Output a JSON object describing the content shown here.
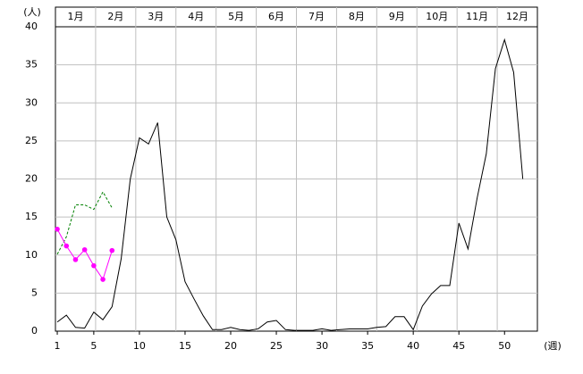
{
  "chart_data": {
    "type": "line",
    "y_label": "(人)",
    "x_label": "(週)",
    "months": [
      "1月",
      "2月",
      "3月",
      "4月",
      "5月",
      "6月",
      "7月",
      "8月",
      "9月",
      "10月",
      "11月",
      "12月"
    ],
    "x": [
      1,
      2,
      3,
      4,
      5,
      6,
      7,
      8,
      9,
      10,
      11,
      12,
      13,
      14,
      15,
      16,
      17,
      18,
      19,
      20,
      21,
      22,
      23,
      24,
      25,
      26,
      27,
      28,
      29,
      30,
      31,
      32,
      33,
      34,
      35,
      36,
      37,
      38,
      39,
      40,
      41,
      42,
      43,
      44,
      45,
      46,
      47,
      48,
      49,
      50,
      51,
      52
    ],
    "series": [
      {
        "color": "#000000",
        "dash": false,
        "markers": false,
        "values": [
          1.2,
          2.1,
          0.5,
          0.4,
          2.5,
          1.5,
          3.2,
          9.5,
          20,
          25.4,
          24.6,
          27.4,
          15,
          12,
          6.5,
          4.2,
          2,
          0.2,
          0.2,
          0.5,
          0.2,
          0.1,
          0.3,
          1.2,
          1.4,
          0.2,
          0.1,
          0.1,
          0.1,
          0.3,
          0.1,
          0.2,
          0.3,
          0.3,
          0.3,
          0.5,
          0.6,
          1.9,
          1.9,
          0.2,
          3.3,
          4.9,
          6,
          6,
          14.2,
          10.8,
          17.5,
          23.3,
          34.5,
          38.3,
          34,
          20
        ]
      },
      {
        "color": "#008000",
        "dash": true,
        "markers": false,
        "values": [
          10.1,
          12.4,
          16.6,
          16.6,
          16,
          18.3,
          16.2,
          null,
          null,
          null,
          null,
          null,
          null,
          null,
          null,
          null,
          null,
          null,
          null,
          null,
          null,
          null,
          null,
          null,
          null,
          null,
          null,
          null,
          null,
          null,
          null,
          null,
          null,
          null,
          null,
          null,
          null,
          null,
          null,
          null,
          null,
          null,
          null,
          null,
          null,
          null,
          null,
          null,
          null,
          null,
          null,
          null
        ]
      },
      {
        "color": "#ff00ff",
        "dash": false,
        "markers": true,
        "values": [
          13.4,
          11.2,
          9.4,
          10.7,
          8.6,
          6.8,
          10.6,
          null,
          null,
          null,
          null,
          null,
          null,
          null,
          null,
          null,
          null,
          null,
          null,
          null,
          null,
          null,
          null,
          null,
          null,
          null,
          null,
          null,
          null,
          null,
          null,
          null,
          null,
          null,
          null,
          null,
          null,
          null,
          null,
          null,
          null,
          null,
          null,
          null,
          null,
          null,
          null,
          null,
          null,
          null,
          null,
          null
        ]
      }
    ],
    "xlim": [
      0.8,
      53.6
    ],
    "xticks": [
      1,
      5,
      10,
      15,
      20,
      25,
      30,
      35,
      40,
      45,
      50
    ],
    "ylim": [
      0,
      40
    ],
    "yticks": [
      0,
      5,
      10,
      15,
      20,
      25,
      30,
      35,
      40
    ],
    "grid": true
  }
}
